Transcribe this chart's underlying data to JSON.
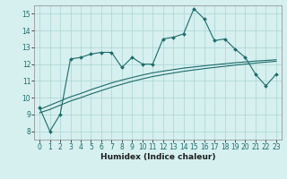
{
  "x": [
    0,
    1,
    2,
    3,
    4,
    5,
    6,
    7,
    8,
    9,
    10,
    11,
    12,
    13,
    14,
    15,
    16,
    17,
    18,
    19,
    20,
    21,
    22,
    23
  ],
  "line1": [
    9.4,
    8.0,
    9.0,
    12.3,
    12.4,
    12.6,
    12.7,
    12.7,
    11.8,
    12.4,
    12.0,
    12.0,
    13.5,
    13.6,
    13.8,
    15.3,
    14.7,
    13.4,
    13.5,
    12.9,
    12.4,
    11.4,
    10.7,
    11.4
  ],
  "line2_slope": [
    9.3,
    9.55,
    9.8,
    10.05,
    10.25,
    10.48,
    10.68,
    10.88,
    11.05,
    11.2,
    11.35,
    11.48,
    11.58,
    11.67,
    11.76,
    11.83,
    11.9,
    11.96,
    12.02,
    12.08,
    12.13,
    12.18,
    12.22,
    12.26
  ],
  "line3_slope": [
    9.1,
    9.3,
    9.55,
    9.8,
    10.0,
    10.22,
    10.42,
    10.62,
    10.8,
    10.97,
    11.12,
    11.26,
    11.37,
    11.47,
    11.57,
    11.65,
    11.73,
    11.8,
    11.87,
    11.94,
    12.0,
    12.06,
    12.12,
    12.17
  ],
  "color": "#1e6b6b",
  "bg_color": "#d6efef",
  "grid_color": "#aad4d4",
  "xlabel": "Humidex (Indice chaleur)",
  "xlim": [
    -0.5,
    23.5
  ],
  "ylim": [
    7.5,
    15.5
  ],
  "yticks": [
    8,
    9,
    10,
    11,
    12,
    13,
    14,
    15
  ],
  "xticks": [
    0,
    1,
    2,
    3,
    4,
    5,
    6,
    7,
    8,
    9,
    10,
    11,
    12,
    13,
    14,
    15,
    16,
    17,
    18,
    19,
    20,
    21,
    22,
    23
  ]
}
